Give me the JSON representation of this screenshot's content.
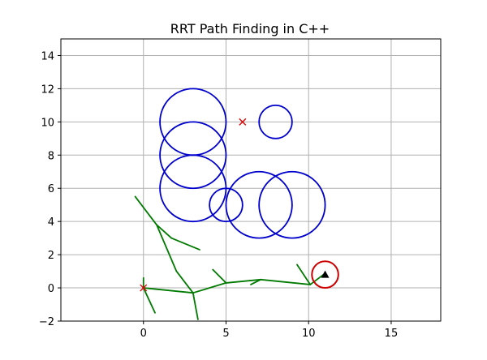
{
  "chart_data": {
    "type": "scatter",
    "title": "RRT Path Finding in C++",
    "xlabel": "",
    "ylabel": "",
    "xlim": [
      -5,
      18
    ],
    "ylim": [
      -2,
      15
    ],
    "grid": true,
    "x_ticks": [
      0,
      5,
      10,
      15
    ],
    "y_ticks": [
      -2,
      0,
      2,
      4,
      6,
      8,
      10,
      12,
      14
    ],
    "obstacles": [
      {
        "cx": 3,
        "cy": 10,
        "r": 2
      },
      {
        "cx": 3,
        "cy": 8,
        "r": 2
      },
      {
        "cx": 3,
        "cy": 6,
        "r": 2
      },
      {
        "cx": 5,
        "cy": 5,
        "r": 1
      },
      {
        "cx": 7,
        "cy": 5,
        "r": 2
      },
      {
        "cx": 9,
        "cy": 5,
        "r": 2
      },
      {
        "cx": 8,
        "cy": 10,
        "r": 1
      }
    ],
    "obstacle_color": "#0000cc",
    "tree_color": "#007a00",
    "tree_edges": [
      [
        [
          -0.5,
          5.5
        ],
        [
          0.8,
          3.8
        ]
      ],
      [
        [
          0.8,
          3.8
        ],
        [
          1.7,
          3.0
        ]
      ],
      [
        [
          1.7,
          3.0
        ],
        [
          3.4,
          2.3
        ]
      ],
      [
        [
          0.8,
          3.8
        ],
        [
          2.0,
          1.0
        ]
      ],
      [
        [
          2.0,
          1.0
        ],
        [
          3.0,
          -0.3
        ]
      ],
      [
        [
          0,
          0
        ],
        [
          3.0,
          -0.3
        ]
      ],
      [
        [
          3.0,
          -0.3
        ],
        [
          3.3,
          -1.9
        ]
      ],
      [
        [
          3.0,
          -0.3
        ],
        [
          5.0,
          0.3
        ]
      ],
      [
        [
          5.0,
          0.3
        ],
        [
          4.2,
          1.1
        ]
      ],
      [
        [
          5.0,
          0.3
        ],
        [
          7.1,
          0.5
        ]
      ],
      [
        [
          7.1,
          0.5
        ],
        [
          6.5,
          0.2
        ]
      ],
      [
        [
          7.1,
          0.5
        ],
        [
          10.1,
          0.2
        ]
      ],
      [
        [
          10.1,
          0.2
        ],
        [
          9.3,
          1.4
        ]
      ],
      [
        [
          10.1,
          0.2
        ],
        [
          10.9,
          0.8
        ]
      ],
      [
        [
          0,
          0
        ],
        [
          0,
          0.6
        ]
      ],
      [
        [
          0,
          0
        ],
        [
          0.7,
          -1.5
        ]
      ]
    ],
    "markers": [
      {
        "name": "start",
        "x": 0,
        "y": 0,
        "symbol": "x",
        "color": "#dd0000"
      },
      {
        "name": "waypoint",
        "x": 6,
        "y": 10,
        "symbol": "x",
        "color": "#dd0000"
      },
      {
        "name": "goal",
        "x": 11,
        "y": 0.8,
        "symbol": "triangle",
        "color": "#000000"
      }
    ],
    "goal_region": {
      "cx": 11,
      "cy": 0.8,
      "r": 0.8,
      "color": "#cc0000"
    }
  }
}
